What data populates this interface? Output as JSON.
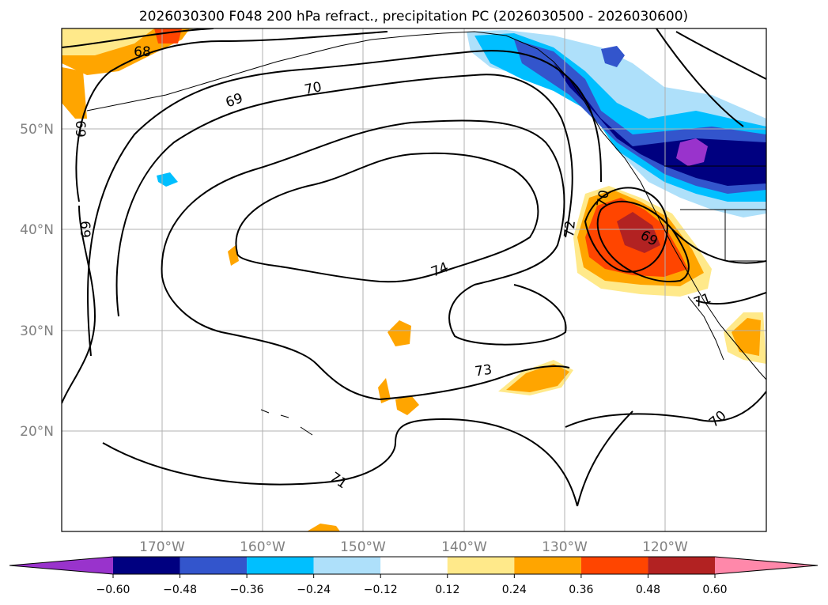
{
  "title": "2026030300 F048 200 hPa refract., precipitation PC (2026030500 - 2026030600)",
  "map": {
    "lat_labels": [
      "50°N",
      "40°N",
      "30°N",
      "20°N"
    ],
    "lon_labels": [
      "170°W",
      "160°W",
      "150°W",
      "140°W",
      "130°W",
      "120°W"
    ],
    "contour_labels": [
      "68",
      "69",
      "70",
      "69",
      "69",
      "74",
      "73",
      "72",
      "70",
      "69",
      "71",
      "70",
      "71"
    ],
    "contour_color": "#000000"
  },
  "colorbar": {
    "ticks": [
      "−0.60",
      "−0.48",
      "−0.36",
      "−0.24",
      "−0.12",
      "0.12",
      "0.24",
      "0.36",
      "0.48",
      "0.60"
    ],
    "colors": [
      "#9933cc",
      "#000080",
      "#3355cc",
      "#00bfff",
      "#aee0fa",
      "#ffffff",
      "#ffe98a",
      "#ffa500",
      "#ff4500",
      "#b22222",
      "#ff88aa"
    ]
  },
  "chart_data": {
    "type": "contour-map",
    "title": "2026030300 F048 200 hPa refract., precipitation PC (2026030500 - 2026030600)",
    "lat_range": [
      10,
      60
    ],
    "lon_range": [
      -180,
      -110
    ],
    "contour_levels": [
      68,
      69,
      70,
      71,
      72,
      73,
      74
    ],
    "colorbar_levels": [
      -0.6,
      -0.48,
      -0.36,
      -0.24,
      -0.12,
      0.12,
      0.24,
      0.36,
      0.48,
      0.6
    ]
  }
}
